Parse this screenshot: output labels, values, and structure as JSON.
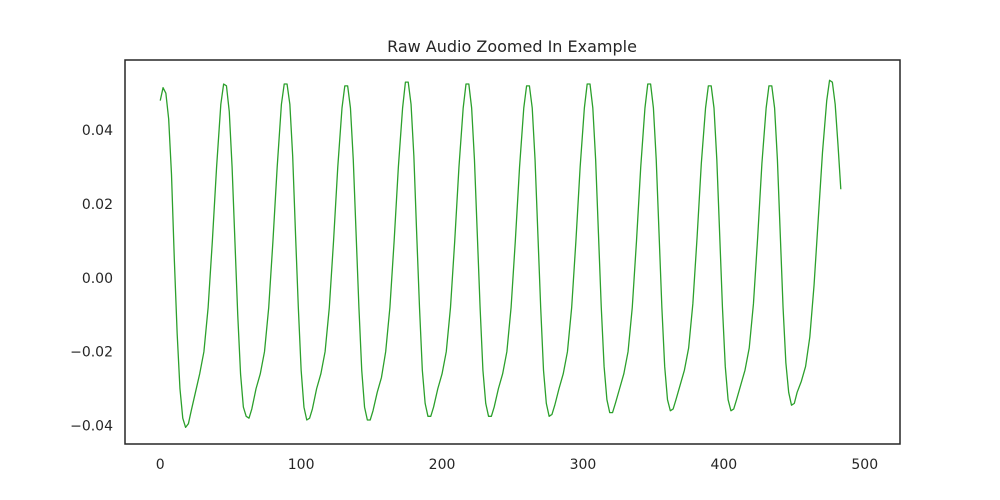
{
  "chart_data": {
    "type": "line",
    "title": "Raw Audio Zoomed In Example",
    "xlabel": "",
    "ylabel": "",
    "xlim": [
      -25,
      525
    ],
    "ylim": [
      -0.045,
      0.059
    ],
    "grid": false,
    "x_ticks": [
      0,
      100,
      200,
      300,
      400,
      500
    ],
    "x_tick_labels": [
      "0",
      "100",
      "200",
      "300",
      "400",
      "500"
    ],
    "y_ticks": [
      -0.04,
      -0.02,
      0.0,
      0.02,
      0.04
    ],
    "y_tick_labels": [
      "−0.04",
      "−0.02",
      "0.00",
      "0.02",
      "0.04"
    ],
    "series": [
      {
        "color": "#2ca02c",
        "points": [
          [
            0,
            0.048
          ],
          [
            2,
            0.0515
          ],
          [
            4,
            0.05
          ],
          [
            6,
            0.043
          ],
          [
            8,
            0.028
          ],
          [
            10,
            0.005
          ],
          [
            12,
            -0.015
          ],
          [
            14,
            -0.03
          ],
          [
            16,
            -0.038
          ],
          [
            18,
            -0.0405
          ],
          [
            20,
            -0.0395
          ],
          [
            22,
            -0.036
          ],
          [
            25,
            -0.031
          ],
          [
            28,
            -0.026
          ],
          [
            31,
            -0.02
          ],
          [
            34,
            -0.008
          ],
          [
            37,
            0.01
          ],
          [
            40,
            0.03
          ],
          [
            43,
            0.047
          ],
          [
            45,
            0.0525
          ],
          [
            47,
            0.052
          ],
          [
            49,
            0.045
          ],
          [
            51,
            0.03
          ],
          [
            53,
            0.01
          ],
          [
            55,
            -0.01
          ],
          [
            57,
            -0.026
          ],
          [
            59,
            -0.035
          ],
          [
            61,
            -0.0375
          ],
          [
            63,
            -0.038
          ],
          [
            65,
            -0.0355
          ],
          [
            68,
            -0.03
          ],
          [
            71,
            -0.026
          ],
          [
            74,
            -0.02
          ],
          [
            77,
            -0.008
          ],
          [
            80,
            0.01
          ],
          [
            83,
            0.03
          ],
          [
            86,
            0.047
          ],
          [
            88,
            0.0525
          ],
          [
            90,
            0.0525
          ],
          [
            92,
            0.047
          ],
          [
            94,
            0.033
          ],
          [
            96,
            0.012
          ],
          [
            98,
            -0.008
          ],
          [
            100,
            -0.025
          ],
          [
            102,
            -0.035
          ],
          [
            104,
            -0.0385
          ],
          [
            106,
            -0.038
          ],
          [
            108,
            -0.0355
          ],
          [
            111,
            -0.03
          ],
          [
            114,
            -0.026
          ],
          [
            117,
            -0.02
          ],
          [
            120,
            -0.008
          ],
          [
            123,
            0.01
          ],
          [
            126,
            0.03
          ],
          [
            129,
            0.046
          ],
          [
            131,
            0.052
          ],
          [
            133,
            0.052
          ],
          [
            135,
            0.046
          ],
          [
            137,
            0.032
          ],
          [
            139,
            0.012
          ],
          [
            141,
            -0.008
          ],
          [
            143,
            -0.025
          ],
          [
            145,
            -0.035
          ],
          [
            147,
            -0.0385
          ],
          [
            149,
            -0.0385
          ],
          [
            151,
            -0.036
          ],
          [
            154,
            -0.031
          ],
          [
            157,
            -0.027
          ],
          [
            160,
            -0.02
          ],
          [
            163,
            -0.008
          ],
          [
            166,
            0.01
          ],
          [
            169,
            0.03
          ],
          [
            172,
            0.046
          ],
          [
            174,
            0.053
          ],
          [
            176,
            0.053
          ],
          [
            178,
            0.047
          ],
          [
            180,
            0.033
          ],
          [
            182,
            0.012
          ],
          [
            184,
            -0.008
          ],
          [
            186,
            -0.025
          ],
          [
            188,
            -0.034
          ],
          [
            190,
            -0.0375
          ],
          [
            192,
            -0.0375
          ],
          [
            194,
            -0.035
          ],
          [
            197,
            -0.03
          ],
          [
            200,
            -0.026
          ],
          [
            203,
            -0.02
          ],
          [
            206,
            -0.008
          ],
          [
            209,
            0.01
          ],
          [
            212,
            0.03
          ],
          [
            215,
            0.046
          ],
          [
            217,
            0.0525
          ],
          [
            219,
            0.0525
          ],
          [
            221,
            0.046
          ],
          [
            223,
            0.032
          ],
          [
            225,
            0.012
          ],
          [
            227,
            -0.008
          ],
          [
            229,
            -0.025
          ],
          [
            231,
            -0.034
          ],
          [
            233,
            -0.0375
          ],
          [
            235,
            -0.0375
          ],
          [
            237,
            -0.035
          ],
          [
            240,
            -0.03
          ],
          [
            243,
            -0.026
          ],
          [
            246,
            -0.02
          ],
          [
            249,
            -0.008
          ],
          [
            252,
            0.01
          ],
          [
            255,
            0.03
          ],
          [
            258,
            0.046
          ],
          [
            260,
            0.052
          ],
          [
            262,
            0.052
          ],
          [
            264,
            0.046
          ],
          [
            266,
            0.032
          ],
          [
            268,
            0.012
          ],
          [
            270,
            -0.008
          ],
          [
            272,
            -0.025
          ],
          [
            274,
            -0.034
          ],
          [
            276,
            -0.0375
          ],
          [
            278,
            -0.037
          ],
          [
            280,
            -0.0345
          ],
          [
            283,
            -0.03
          ],
          [
            286,
            -0.026
          ],
          [
            289,
            -0.02
          ],
          [
            292,
            -0.008
          ],
          [
            295,
            0.01
          ],
          [
            298,
            0.03
          ],
          [
            301,
            0.046
          ],
          [
            303,
            0.0525
          ],
          [
            305,
            0.0525
          ],
          [
            307,
            0.046
          ],
          [
            309,
            0.032
          ],
          [
            311,
            0.012
          ],
          [
            313,
            -0.008
          ],
          [
            315,
            -0.024
          ],
          [
            317,
            -0.033
          ],
          [
            319,
            -0.0365
          ],
          [
            321,
            -0.0365
          ],
          [
            323,
            -0.034
          ],
          [
            326,
            -0.03
          ],
          [
            329,
            -0.026
          ],
          [
            332,
            -0.02
          ],
          [
            335,
            -0.008
          ],
          [
            338,
            0.01
          ],
          [
            341,
            0.03
          ],
          [
            344,
            0.046
          ],
          [
            346,
            0.0525
          ],
          [
            348,
            0.0525
          ],
          [
            350,
            0.046
          ],
          [
            352,
            0.032
          ],
          [
            354,
            0.012
          ],
          [
            356,
            -0.008
          ],
          [
            358,
            -0.024
          ],
          [
            360,
            -0.033
          ],
          [
            362,
            -0.036
          ],
          [
            364,
            -0.0355
          ],
          [
            366,
            -0.033
          ],
          [
            369,
            -0.029
          ],
          [
            372,
            -0.025
          ],
          [
            375,
            -0.019
          ],
          [
            378,
            -0.007
          ],
          [
            381,
            0.011
          ],
          [
            384,
            0.031
          ],
          [
            387,
            0.046
          ],
          [
            389,
            0.052
          ],
          [
            391,
            0.052
          ],
          [
            393,
            0.046
          ],
          [
            395,
            0.032
          ],
          [
            397,
            0.012
          ],
          [
            399,
            -0.008
          ],
          [
            401,
            -0.024
          ],
          [
            403,
            -0.033
          ],
          [
            405,
            -0.036
          ],
          [
            407,
            -0.0355
          ],
          [
            409,
            -0.033
          ],
          [
            412,
            -0.029
          ],
          [
            415,
            -0.025
          ],
          [
            418,
            -0.019
          ],
          [
            421,
            -0.007
          ],
          [
            424,
            0.011
          ],
          [
            427,
            0.031
          ],
          [
            430,
            0.046
          ],
          [
            432,
            0.052
          ],
          [
            434,
            0.052
          ],
          [
            436,
            0.046
          ],
          [
            438,
            0.032
          ],
          [
            440,
            0.012
          ],
          [
            442,
            -0.008
          ],
          [
            444,
            -0.023
          ],
          [
            446,
            -0.031
          ],
          [
            448,
            -0.0345
          ],
          [
            450,
            -0.034
          ],
          [
            452,
            -0.031
          ],
          [
            455,
            -0.028
          ],
          [
            458,
            -0.024
          ],
          [
            461,
            -0.016
          ],
          [
            464,
            -0.002
          ],
          [
            467,
            0.016
          ],
          [
            470,
            0.034
          ],
          [
            473,
            0.048
          ],
          [
            475,
            0.0535
          ],
          [
            477,
            0.053
          ],
          [
            479,
            0.047
          ],
          [
            481,
            0.036
          ],
          [
            483,
            0.024
          ]
        ]
      }
    ]
  }
}
